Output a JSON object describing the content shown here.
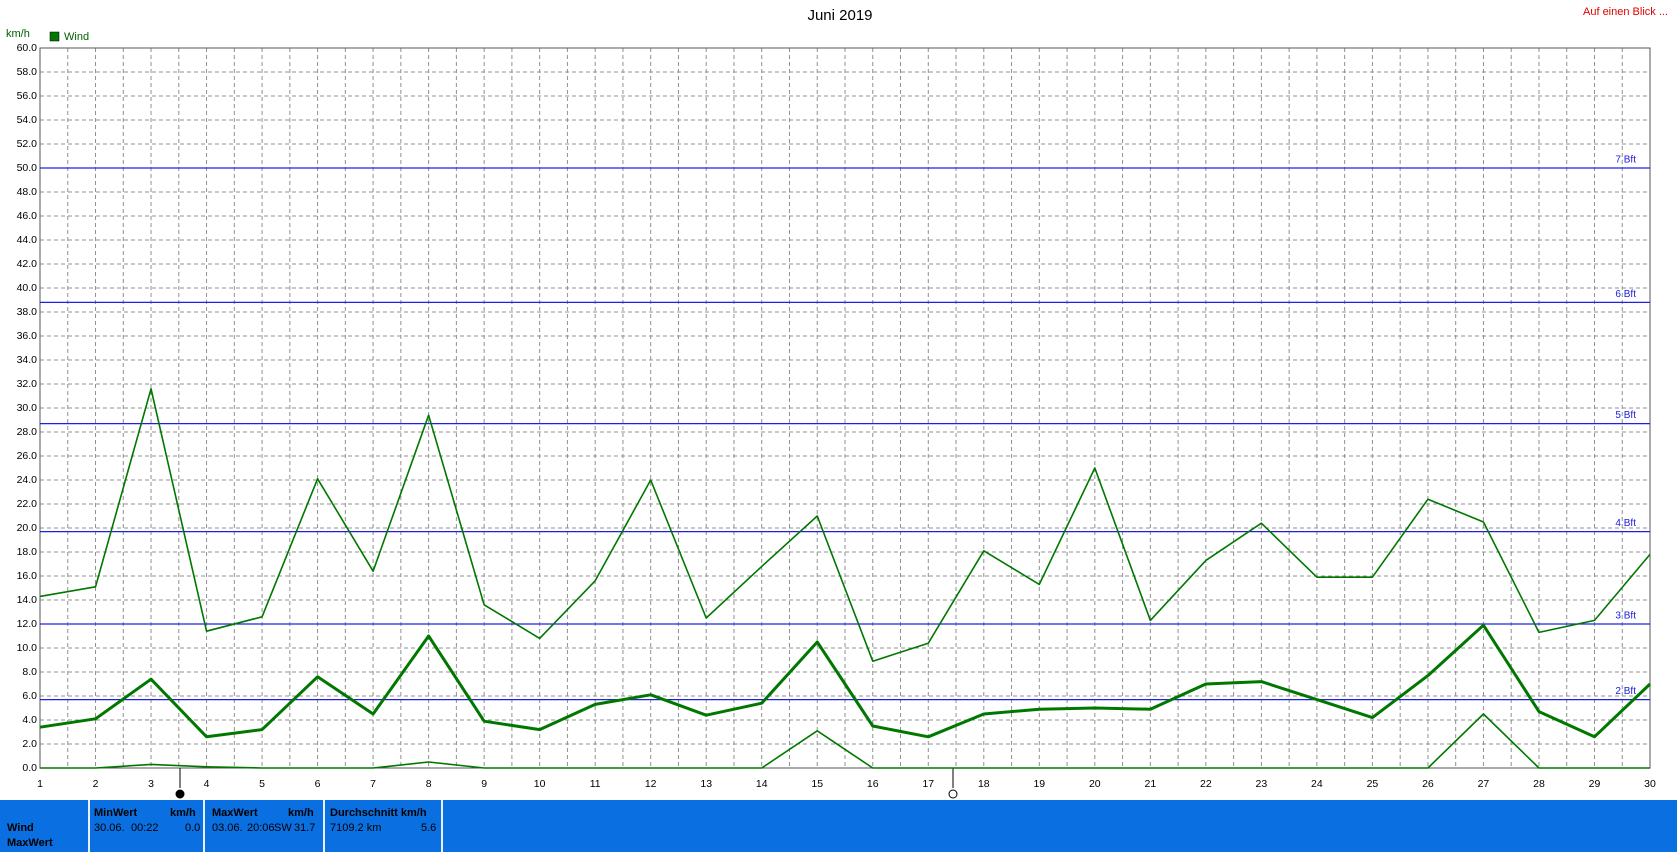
{
  "chart_data": {
    "type": "line",
    "title": "Juni 2019",
    "y_label": "km/h",
    "legend": {
      "label": "Wind",
      "color": "#007800"
    },
    "link": "Auf einen Blick ...",
    "x": [
      1,
      2,
      3,
      4,
      5,
      6,
      7,
      8,
      9,
      10,
      11,
      12,
      13,
      14,
      15,
      16,
      17,
      18,
      19,
      20,
      21,
      22,
      23,
      24,
      25,
      26,
      27,
      28,
      29,
      30
    ],
    "series": [
      {
        "color": "#007800",
        "line_width": 1.6,
        "values": [
          14.3,
          15.1,
          31.6,
          11.4,
          12.6,
          24.1,
          16.4,
          29.4,
          13.6,
          10.8,
          15.6,
          24.0,
          12.5,
          16.8,
          21.0,
          8.9,
          10.4,
          18.1,
          15.3,
          25.0,
          12.3,
          17.3,
          20.4,
          15.9,
          15.9,
          22.4,
          20.5,
          11.3,
          12.3,
          17.8
        ]
      },
      {
        "color": "#007800",
        "line_width": 3,
        "values": [
          3.4,
          4.1,
          7.4,
          2.6,
          3.2,
          7.6,
          4.5,
          11.0,
          3.9,
          3.2,
          5.3,
          6.1,
          4.4,
          5.4,
          10.5,
          3.5,
          2.6,
          4.5,
          4.9,
          5.0,
          4.9,
          7.0,
          7.2,
          5.7,
          4.2,
          7.7,
          11.9,
          4.7,
          2.6,
          7.0
        ]
      },
      {
        "color": "#007800",
        "line_width": 1.6,
        "values": [
          0,
          0,
          0.3,
          0.1,
          0,
          0,
          0,
          0.5,
          0,
          0,
          0,
          0,
          0,
          0,
          3.1,
          0,
          0,
          0,
          0,
          0,
          0,
          0,
          0,
          0,
          0,
          0,
          4.5,
          0,
          0,
          0
        ]
      }
    ],
    "xlim": [
      1,
      30
    ],
    "ylim": [
      0,
      60
    ],
    "xticks": [
      1,
      2,
      3,
      4,
      5,
      6,
      7,
      8,
      9,
      10,
      11,
      12,
      13,
      14,
      15,
      16,
      17,
      18,
      19,
      20,
      21,
      22,
      23,
      24,
      25,
      26,
      27,
      28,
      29,
      30
    ],
    "yticks": [
      {
        "value": 0,
        "label": "0.0"
      },
      {
        "value": 2,
        "label": "2.0"
      },
      {
        "value": 4,
        "label": "4.0"
      },
      {
        "value": 6,
        "label": "6.0"
      },
      {
        "value": 8,
        "label": "8.0"
      },
      {
        "value": 10,
        "label": "10.0"
      },
      {
        "value": 12,
        "label": "12.0"
      },
      {
        "value": 14,
        "label": "14.0"
      },
      {
        "value": 16,
        "label": "16.0"
      },
      {
        "value": 18,
        "label": "18.0"
      },
      {
        "value": 20,
        "label": "20.0"
      },
      {
        "value": 22,
        "label": "22.0"
      },
      {
        "value": 24,
        "label": "24.0"
      },
      {
        "value": 26,
        "label": "26.0"
      },
      {
        "value": 28,
        "label": "28.0"
      },
      {
        "value": 30,
        "label": "30.0"
      },
      {
        "value": 32,
        "label": "32.0"
      },
      {
        "value": 34,
        "label": "34.0"
      },
      {
        "value": 36,
        "label": "36.0"
      },
      {
        "value": 38,
        "label": "38.0"
      },
      {
        "value": 40,
        "label": "40.0"
      },
      {
        "value": 42,
        "label": "42.0"
      },
      {
        "value": 44,
        "label": "44.0"
      },
      {
        "value": 46,
        "label": "46.0"
      },
      {
        "value": 48,
        "label": "48.0"
      },
      {
        "value": 50,
        "label": "50.0"
      },
      {
        "value": 52,
        "label": "52.0"
      },
      {
        "value": 54,
        "label": "54.0"
      },
      {
        "value": 56,
        "label": "56.0"
      },
      {
        "value": 58,
        "label": "58.0"
      },
      {
        "value": 60,
        "label": "60.0"
      }
    ],
    "grid": true,
    "reference_lines": [
      {
        "value": 50.0,
        "label": "7 Bft",
        "color": "#2020e0"
      },
      {
        "value": 38.8,
        "label": "6 Bft",
        "color": "#2020e0"
      },
      {
        "value": 28.7,
        "label": "5 Bft",
        "color": "#2020e0"
      },
      {
        "value": 19.7,
        "label": "4 Bft",
        "color": "#2020e0"
      },
      {
        "value": 12.0,
        "label": "3 Bft",
        "color": "#2020e0"
      },
      {
        "value": 5.7,
        "label": "2 Bft",
        "color": "#2020e0"
      }
    ]
  },
  "summary": {
    "rows": [
      "Wind",
      "MaxWert"
    ],
    "min": {
      "header": "MinWert",
      "unit": "km/h",
      "date": "30.06.",
      "time": "00:22",
      "value": "0.0"
    },
    "max": {
      "header": "MaxWert",
      "unit": "km/h",
      "date": "03.06.",
      "time": "20:06",
      "direction": "SW",
      "value": "31.7"
    },
    "avg": {
      "header": "Durchschnitt km/h",
      "distance": "7109.2 km",
      "value": "5.6"
    }
  }
}
